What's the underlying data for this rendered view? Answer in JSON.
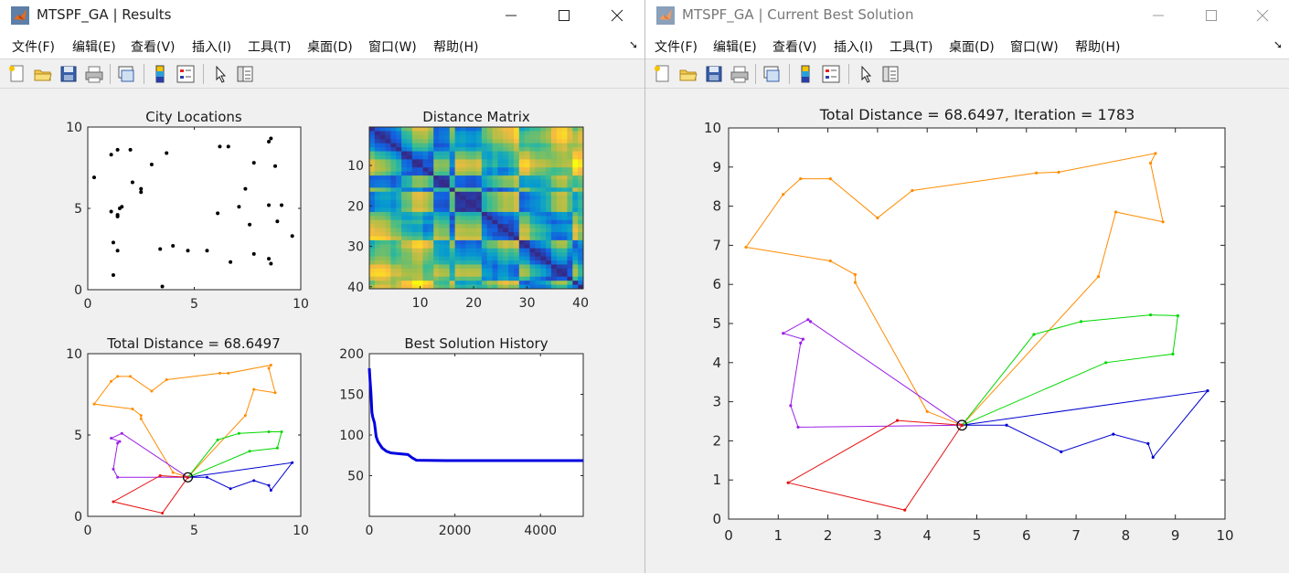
{
  "windows": {
    "left": {
      "title": "MTSPF_GA | Results",
      "menu": [
        "文件(F)",
        "编辑(E)",
        "查看(V)",
        "插入(I)",
        "工具(T)",
        "桌面(D)",
        "窗口(W)",
        "帮助(H)"
      ]
    },
    "right": {
      "title": "MTSPF_GA | Current Best Solution",
      "menu": [
        "文件(F)",
        "编辑(E)",
        "查看(V)",
        "插入(I)",
        "工具(T)",
        "桌面(D)",
        "窗口(W)",
        "帮助(H)"
      ]
    }
  },
  "toolbar_icons": [
    "new-figure-icon",
    "open-file-icon",
    "save-icon",
    "print-icon",
    "link-figure-icon",
    "colorbar-icon",
    "legend-icon",
    "pointer-icon",
    "property-inspector-icon"
  ],
  "colors": {
    "route_colors": [
      "#ff8c00",
      "#9b1fe8",
      "#0000d0",
      "#00d800",
      "#e81010"
    ],
    "history_line": "#0000e0",
    "depot": "#000000"
  },
  "chart_data": [
    {
      "id": "city_locations",
      "type": "scatter",
      "title": "City Locations",
      "xlim": [
        0,
        10
      ],
      "ylim": [
        0,
        10
      ],
      "xticks": [
        0,
        5,
        10
      ],
      "yticks": [
        0,
        5,
        10
      ],
      "points": [
        [
          0.3,
          6.9
        ],
        [
          1.1,
          8.3
        ],
        [
          1.4,
          8.6
        ],
        [
          2.0,
          8.6
        ],
        [
          3.0,
          7.7
        ],
        [
          3.7,
          8.4
        ],
        [
          6.2,
          8.8
        ],
        [
          6.6,
          8.8
        ],
        [
          8.5,
          9.1
        ],
        [
          8.6,
          9.3
        ],
        [
          8.8,
          7.6
        ],
        [
          7.8,
          7.8
        ],
        [
          2.1,
          6.6
        ],
        [
          2.5,
          6.2
        ],
        [
          2.5,
          6.0
        ],
        [
          7.4,
          6.2
        ],
        [
          1.1,
          4.8
        ],
        [
          1.4,
          4.5
        ],
        [
          1.5,
          5.0
        ],
        [
          1.6,
          5.1
        ],
        [
          1.4,
          4.6
        ],
        [
          6.1,
          4.7
        ],
        [
          7.1,
          5.1
        ],
        [
          7.6,
          4.0
        ],
        [
          8.5,
          5.2
        ],
        [
          9.1,
          5.2
        ],
        [
          8.9,
          4.2
        ],
        [
          9.6,
          3.3
        ],
        [
          1.2,
          2.9
        ],
        [
          1.4,
          2.4
        ],
        [
          3.4,
          2.5
        ],
        [
          4.0,
          2.7
        ],
        [
          4.7,
          2.4
        ],
        [
          5.6,
          2.4
        ],
        [
          7.8,
          2.2
        ],
        [
          8.5,
          1.9
        ],
        [
          8.6,
          1.6
        ],
        [
          6.7,
          1.7
        ],
        [
          1.2,
          0.9
        ],
        [
          3.5,
          0.2
        ]
      ]
    },
    {
      "id": "distance_matrix",
      "type": "heatmap",
      "title": "Distance Matrix",
      "size": 40,
      "xticks": [
        10,
        20,
        30,
        40
      ],
      "yticks": [
        10,
        20,
        30,
        40
      ],
      "colormap": "parula"
    },
    {
      "id": "total_distance_small",
      "type": "line",
      "title": "Total Distance = 68.6497",
      "xlim": [
        0,
        10
      ],
      "ylim": [
        0,
        10
      ],
      "xticks": [
        0,
        5,
        10
      ],
      "yticks": [
        0,
        5,
        10
      ],
      "depot": [
        4.7,
        2.4
      ],
      "routes": [
        {
          "color": "#ff8c00",
          "points": [
            [
              4.7,
              2.4
            ],
            [
              4.0,
              2.7
            ],
            [
              2.5,
              6.0
            ],
            [
              2.5,
              6.2
            ],
            [
              2.1,
              6.6
            ],
            [
              0.3,
              6.9
            ],
            [
              1.1,
              8.3
            ],
            [
              1.4,
              8.6
            ],
            [
              2.0,
              8.6
            ],
            [
              3.0,
              7.7
            ],
            [
              3.7,
              8.4
            ],
            [
              6.2,
              8.8
            ],
            [
              6.6,
              8.8
            ],
            [
              8.6,
              9.3
            ],
            [
              8.5,
              9.1
            ],
            [
              8.8,
              7.6
            ],
            [
              7.8,
              7.8
            ],
            [
              7.4,
              6.2
            ],
            [
              4.7,
              2.4
            ]
          ]
        },
        {
          "color": "#9b1fe8",
          "points": [
            [
              4.7,
              2.4
            ],
            [
              1.6,
              5.1
            ],
            [
              1.1,
              4.8
            ],
            [
              1.5,
              4.6
            ],
            [
              1.4,
              4.5
            ],
            [
              1.2,
              2.9
            ],
            [
              1.4,
              2.4
            ],
            [
              4.7,
              2.4
            ]
          ]
        },
        {
          "color": "#0000d0",
          "points": [
            [
              4.7,
              2.4
            ],
            [
              5.6,
              2.4
            ],
            [
              6.7,
              1.7
            ],
            [
              7.8,
              2.2
            ],
            [
              8.5,
              1.9
            ],
            [
              8.6,
              1.6
            ],
            [
              9.6,
              3.3
            ],
            [
              4.7,
              2.4
            ]
          ]
        },
        {
          "color": "#00d800",
          "points": [
            [
              4.7,
              2.4
            ],
            [
              6.1,
              4.7
            ],
            [
              7.1,
              5.1
            ],
            [
              8.5,
              5.2
            ],
            [
              9.1,
              5.2
            ],
            [
              8.9,
              4.2
            ],
            [
              7.6,
              4.0
            ],
            [
              4.7,
              2.4
            ]
          ]
        },
        {
          "color": "#e81010",
          "points": [
            [
              4.7,
              2.4
            ],
            [
              3.4,
              2.5
            ],
            [
              1.2,
              0.9
            ],
            [
              3.5,
              0.2
            ],
            [
              4.7,
              2.4
            ]
          ]
        }
      ]
    },
    {
      "id": "best_solution_history",
      "type": "line",
      "title": "Best Solution History",
      "xlim": [
        0,
        5000
      ],
      "ylim": [
        0,
        200
      ],
      "xticks": [
        0,
        2000,
        4000
      ],
      "yticks": [
        50,
        100,
        150,
        200
      ],
      "series": [
        {
          "values_xy": [
            [
              0,
              182
            ],
            [
              20,
              165
            ],
            [
              40,
              150
            ],
            [
              60,
              128
            ],
            [
              80,
              122
            ],
            [
              120,
              115
            ],
            [
              160,
              98
            ],
            [
              200,
              92
            ],
            [
              250,
              88
            ],
            [
              300,
              84
            ],
            [
              400,
              80
            ],
            [
              500,
              78
            ],
            [
              700,
              77
            ],
            [
              900,
              76
            ],
            [
              1000,
              72
            ],
            [
              1100,
              69
            ],
            [
              1783,
              68.6
            ],
            [
              5000,
              68.6
            ]
          ]
        }
      ]
    },
    {
      "id": "current_best_solution",
      "type": "line",
      "title": "Total Distance = 68.6497, Iteration = 1783",
      "xlim": [
        0,
        10
      ],
      "ylim": [
        0,
        10
      ],
      "xticks": [
        0,
        1,
        2,
        3,
        4,
        5,
        6,
        7,
        8,
        9,
        10
      ],
      "yticks": [
        0,
        1,
        2,
        3,
        4,
        5,
        6,
        7,
        8,
        9,
        10
      ],
      "depot": [
        4.7,
        2.4
      ],
      "routes": [
        {
          "color": "#ff8c00",
          "points": [
            [
              4.7,
              2.4
            ],
            [
              4.0,
              2.75
            ],
            [
              2.55,
              6.05
            ],
            [
              2.55,
              6.25
            ],
            [
              2.05,
              6.6
            ],
            [
              0.35,
              6.95
            ],
            [
              1.1,
              8.3
            ],
            [
              1.45,
              8.7
            ],
            [
              2.05,
              8.7
            ],
            [
              3.0,
              7.7
            ],
            [
              3.7,
              8.4
            ],
            [
              6.2,
              8.85
            ],
            [
              6.65,
              8.87
            ],
            [
              8.6,
              9.35
            ],
            [
              8.5,
              9.1
            ],
            [
              8.75,
              7.6
            ],
            [
              7.8,
              7.85
            ],
            [
              7.45,
              6.2
            ],
            [
              4.7,
              2.4
            ]
          ]
        },
        {
          "color": "#9b1fe8",
          "points": [
            [
              4.7,
              2.4
            ],
            [
              1.65,
              5.05
            ],
            [
              1.6,
              5.1
            ],
            [
              1.1,
              4.75
            ],
            [
              1.5,
              4.6
            ],
            [
              1.45,
              4.5
            ],
            [
              1.25,
              2.9
            ],
            [
              1.4,
              2.35
            ],
            [
              4.7,
              2.4
            ]
          ]
        },
        {
          "color": "#0000d0",
          "points": [
            [
              4.7,
              2.4
            ],
            [
              5.6,
              2.4
            ],
            [
              6.7,
              1.72
            ],
            [
              7.75,
              2.17
            ],
            [
              8.45,
              1.93
            ],
            [
              8.55,
              1.58
            ],
            [
              9.65,
              3.28
            ],
            [
              4.7,
              2.4
            ]
          ]
        },
        {
          "color": "#00d800",
          "points": [
            [
              4.7,
              2.4
            ],
            [
              6.15,
              4.72
            ],
            [
              7.1,
              5.05
            ],
            [
              8.5,
              5.22
            ],
            [
              9.05,
              5.2
            ],
            [
              8.95,
              4.22
            ],
            [
              7.6,
              4.0
            ],
            [
              4.7,
              2.4
            ]
          ]
        },
        {
          "color": "#e81010",
          "points": [
            [
              4.7,
              2.4
            ],
            [
              3.4,
              2.52
            ],
            [
              1.2,
              0.93
            ],
            [
              3.55,
              0.23
            ],
            [
              4.7,
              2.4
            ]
          ]
        }
      ]
    }
  ]
}
